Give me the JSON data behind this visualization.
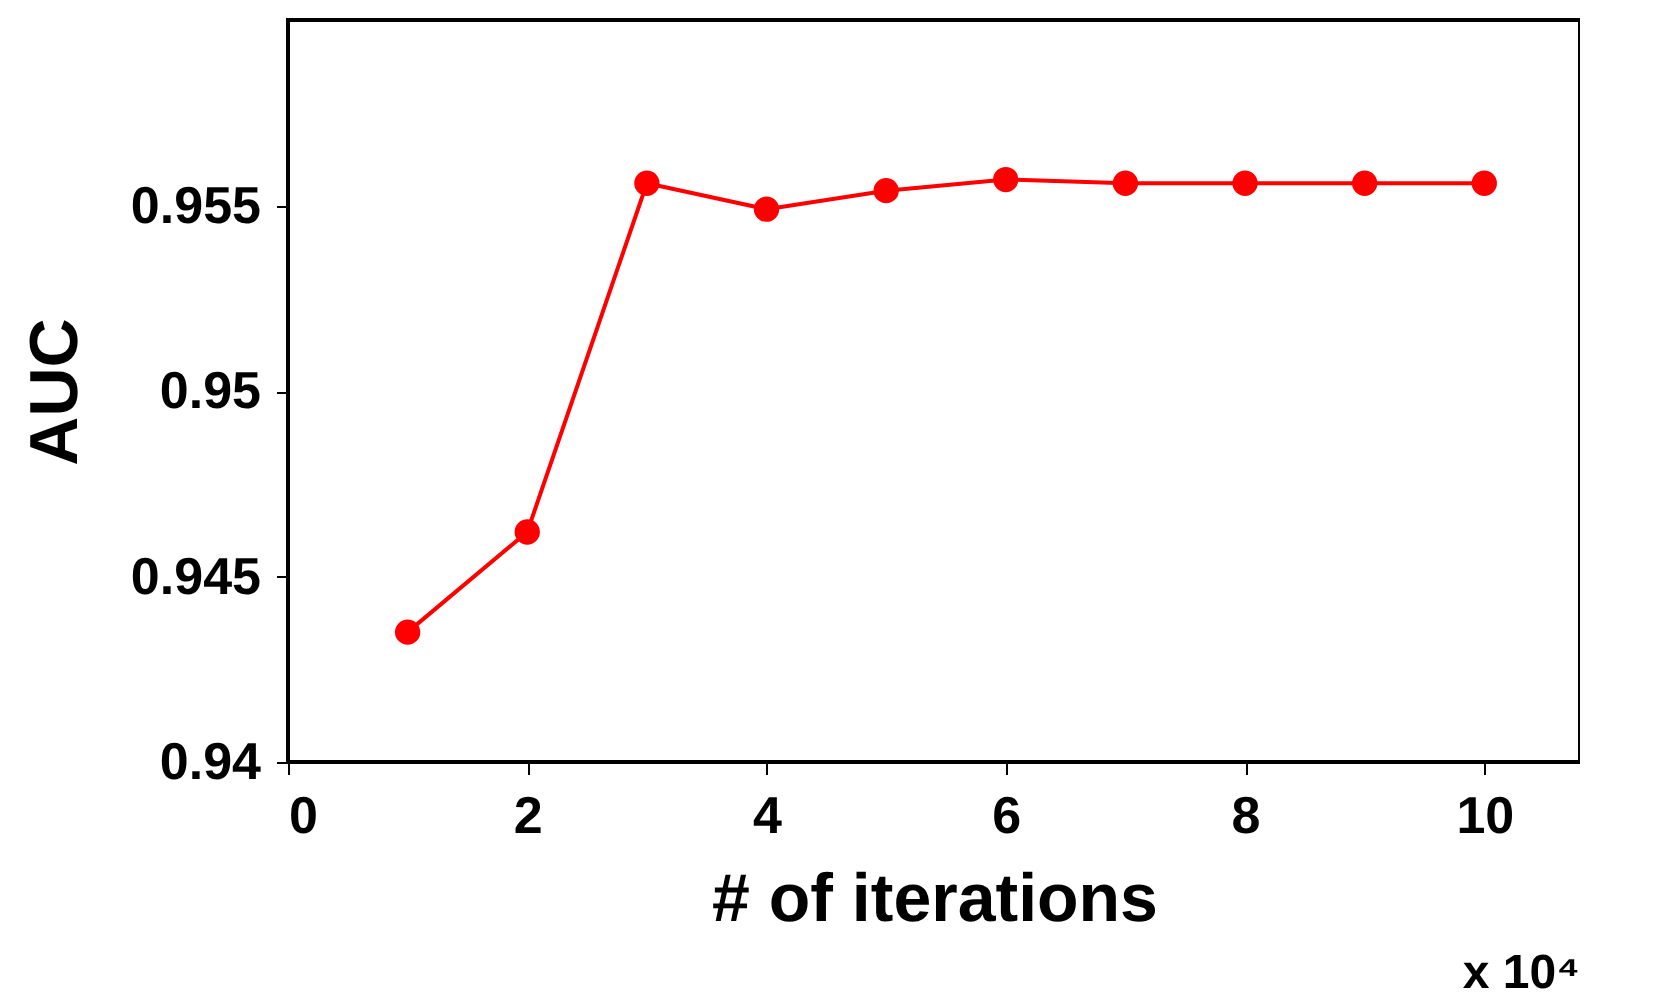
{
  "chart_data": {
    "type": "line",
    "xlabel": "# of iterations",
    "ylabel": "AUC",
    "x": [
      1,
      2,
      3,
      4,
      5,
      6,
      7,
      8,
      9,
      10
    ],
    "series": [
      {
        "color": "#ff0000",
        "values": [
          0.9435,
          0.9462,
          0.9556,
          0.9549,
          0.9554,
          0.9557,
          0.9556,
          0.9556,
          0.9556,
          0.9556
        ]
      }
    ],
    "xlim": [
      0,
      10.8
    ],
    "xticks": [
      0,
      2,
      4,
      6,
      8,
      10
    ],
    "ylim": [
      0.94,
      0.96
    ],
    "yticks": [
      0.94,
      0.945,
      0.95,
      0.955
    ],
    "marker": "circle",
    "line_style": "solid",
    "annotations": [
      "x 10⁴"
    ]
  }
}
